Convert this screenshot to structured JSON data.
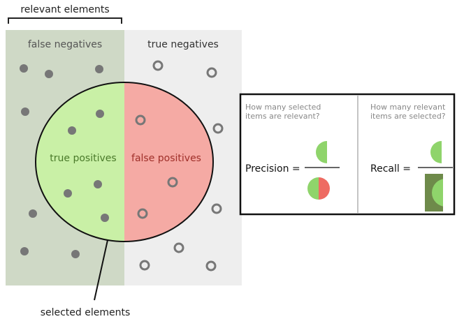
{
  "left_figure": {
    "bracket_label": "relevant elements",
    "false_negatives_label": "false negatives",
    "true_negatives_label": "true negatives",
    "true_positives_label": "true positives",
    "false_positives_label": "false positives",
    "selected_label": "selected elements",
    "relevant_panel_color": "#cfd9c6",
    "nonrelevant_panel_color": "#eeeeee",
    "true_positive_color": "#c9f0a6",
    "false_positive_color": "#f5aaa4",
    "dot_fill_color": "#777777"
  },
  "right_figure": {
    "precision_question_line1": "How many selected",
    "precision_question_line2": "items are relevant?",
    "precision_label": "Precision =",
    "recall_question_line1": "How many relevant",
    "recall_question_line2": "items are selected?",
    "recall_label": "Recall ="
  }
}
